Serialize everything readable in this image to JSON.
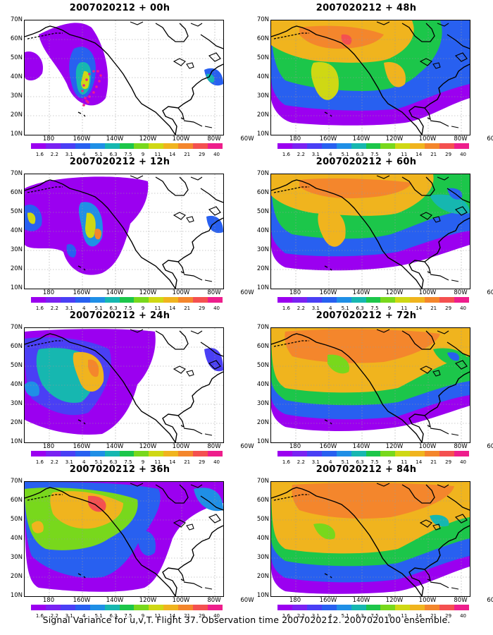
{
  "colorbar": {
    "labels": [
      "1.6",
      "2.2",
      "3.1",
      "4",
      "5.1",
      "6.3",
      "7.5",
      "9",
      "11",
      "14",
      "21",
      "29",
      "40"
    ],
    "colors": [
      "#9b00f0",
      "#7a22f2",
      "#4a3ff5",
      "#2860f0",
      "#1f8fe6",
      "#16b7b0",
      "#1cc64a",
      "#78d81c",
      "#cfd814",
      "#f0b41e",
      "#f4862c",
      "#f45050",
      "#ee1e8c"
    ]
  },
  "lat_labels": [
    "70N",
    "60N",
    "50N",
    "40N",
    "30N",
    "20N",
    "10N"
  ],
  "lon_labels": [
    "180",
    "160W",
    "140W",
    "120W",
    "100W",
    "80W",
    "60W"
  ],
  "panels": [
    {
      "title": "2007020212 + 00h",
      "forecast_hour": 0
    },
    {
      "title": "2007020212 + 48h",
      "forecast_hour": 48
    },
    {
      "title": "2007020212 + 12h",
      "forecast_hour": 12
    },
    {
      "title": "2007020212 + 60h",
      "forecast_hour": 60
    },
    {
      "title": "2007020212 + 24h",
      "forecast_hour": 24
    },
    {
      "title": "2007020212 + 72h",
      "forecast_hour": 72
    },
    {
      "title": "2007020212 + 36h",
      "forecast_hour": 36
    },
    {
      "title": "2007020212 + 84h",
      "forecast_hour": 84
    }
  ],
  "caption": "Signal Variance for u,v,T. Flight 37. Observation time 2007020212. 2007020100 ensemble."
}
